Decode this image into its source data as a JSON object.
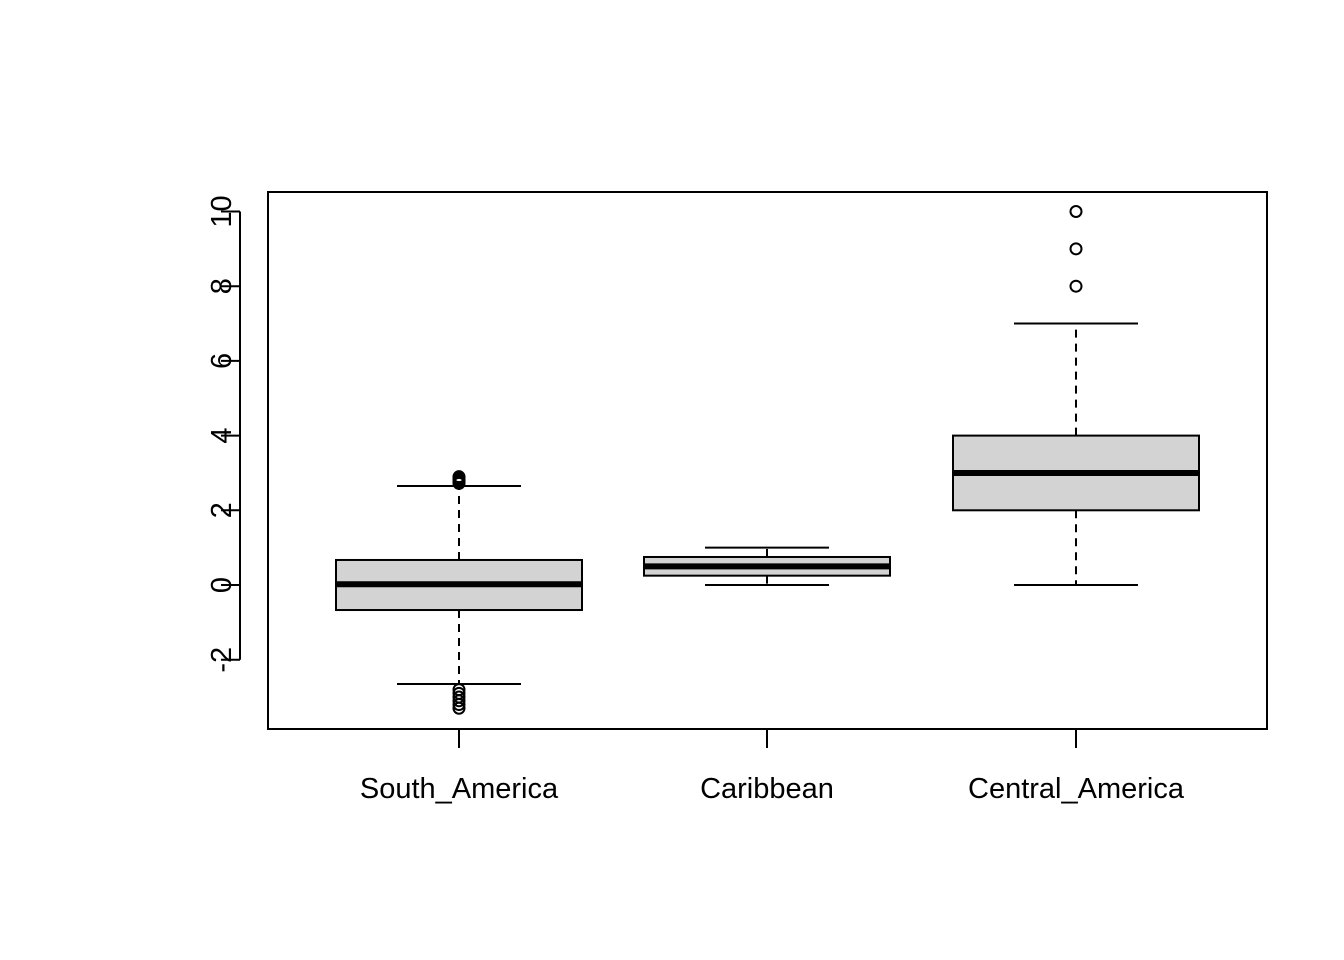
{
  "chart_data": {
    "type": "boxplot",
    "title": "",
    "xlabel": "",
    "ylabel": "",
    "ylim": [
      -3.9,
      10.5
    ],
    "yticks": [
      -2,
      0,
      2,
      4,
      6,
      8,
      10
    ],
    "ytick_labels": [
      "-2",
      "0",
      "2",
      "4",
      "6",
      "8",
      "10"
    ],
    "categories": [
      "South_America",
      "Caribbean",
      "Central_America"
    ],
    "boxes": [
      {
        "name": "South_America",
        "whisker_low": -2.65,
        "q1": -0.67,
        "median": 0.02,
        "q3": 0.67,
        "whisker_high": 2.65,
        "outliers": [
          2.72,
          2.76,
          2.8,
          2.84,
          2.88,
          2.9,
          -2.8,
          -2.9,
          -3.0,
          -3.1,
          -3.2,
          -3.3
        ]
      },
      {
        "name": "Caribbean",
        "whisker_low": 0.0,
        "q1": 0.25,
        "median": 0.5,
        "q3": 0.75,
        "whisker_high": 1.0,
        "outliers": []
      },
      {
        "name": "Central_America",
        "whisker_low": 0.0,
        "q1": 2.0,
        "median": 3.0,
        "q3": 4.0,
        "whisker_high": 7.0,
        "outliers": [
          8,
          9,
          10
        ]
      }
    ],
    "box_fill": "#d3d3d3",
    "line_color": "#000000",
    "grid": false,
    "legend": "none"
  }
}
